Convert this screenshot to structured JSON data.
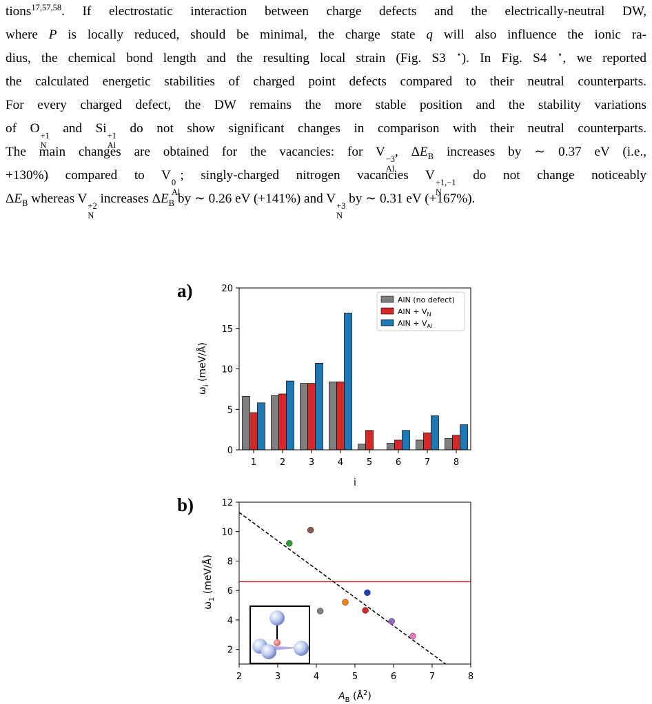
{
  "paper": {
    "line1": {
      "a": "tions",
      "sup": "17,57,58",
      "b": ". If electrostatic interaction between charge defects and the electrically-neutral DW,"
    },
    "line2": {
      "a": "where ",
      "P": "P",
      "b": " is locally reduced, should be minimal, the charge state ",
      "q": "q",
      "c": " will also influence the ionic ra-"
    },
    "line3": {
      "a": "dius, the chemical bond length and the resulting local strain (Fig. S3 ",
      "star": "⋆",
      "b": "). In Fig. S4 ",
      "star2": "⋆",
      "c": ", we reported"
    },
    "line4": "the calculated energetic stabilities of charged point defects compared to their neutral counterparts.",
    "line5": "For every charged defect, the DW remains the more stable position and the stability variations",
    "line6": {
      "a": "of O",
      "o_sup": "+1",
      "o_sub": "N",
      "b": " and Si",
      "si_sup": "+1",
      "si_sub": "Al",
      "c": " do not show significant changes in comparison with their neutral counterparts."
    },
    "line7": {
      "a": "The main changes are obtained for the vacancies: for V",
      "v_sup": "−3",
      "v_sub": "Al",
      "b": ", Δ",
      "E": "E",
      "E_sub": "B",
      "c": " increases by ∼ 0.37 eV (i.e.,"
    },
    "line8": {
      "a": "+130%) compared to V",
      "v_sup": "0",
      "v_sub": "Al",
      "b": "; singly-charged nitrogen vacancies V",
      "v2_sup": "+1,−1",
      "v2_sub": "N",
      "c": " do not change noticeably"
    },
    "line9": {
      "a": "Δ",
      "E": "E",
      "E_sub": "B",
      "b": " whereas V",
      "v_sup": "+2",
      "v_sub": "N",
      "c": " increases Δ",
      "E2": "E",
      "E2_sub": "B",
      "d": " by ∼ 0.26 eV (+141%) and V",
      "v2_sup": "+3",
      "v2_sub": "N",
      "e": " by ∼ 0.31 eV (+167%)."
    }
  },
  "figure": {
    "label_a": "a)",
    "label_b": "b)",
    "ylabel_a_main": "ω",
    "ylabel_a_sub": "i",
    "ylabel_a_unit": " (meV/Å)",
    "ylabel_b_main": "ω",
    "ylabel_b_sub": "1",
    "ylabel_b_unit": " (meV/Å)",
    "xlabel_b_main": "A",
    "xlabel_b_sub": "B",
    "xlabel_b_unit": " (Å",
    "xlabel_b_sup": "2",
    "xlabel_b_close": ")",
    "legend": [
      {
        "main": "AlN (no defect)",
        "sub": ""
      },
      {
        "main": "AlN + V",
        "sub": "N"
      },
      {
        "main": "AlN + V",
        "sub": "Al"
      }
    ]
  },
  "chart_data": [
    {
      "type": "bar",
      "xlabel": "i",
      "ylabel": "ωi (meV/Å)",
      "categories": [
        "1",
        "2",
        "3",
        "4",
        "5",
        "6",
        "7",
        "8"
      ],
      "ylim": [
        0,
        20
      ],
      "yticks": [
        0,
        5,
        10,
        15,
        20
      ],
      "legend_position": "top-right",
      "series": [
        {
          "name": "AlN (no defect)",
          "color": "#7f7f7f",
          "values": [
            6.6,
            6.7,
            8.2,
            8.4,
            0.7,
            0.8,
            1.2,
            1.4
          ]
        },
        {
          "name": "AlN + VN",
          "color": "#d62728",
          "values": [
            4.6,
            6.9,
            8.2,
            8.4,
            2.4,
            1.2,
            2.1,
            1.8
          ]
        },
        {
          "name": "AlN + VAl",
          "color": "#1f77b4",
          "values": [
            5.8,
            8.5,
            10.7,
            16.9,
            0.0,
            2.4,
            4.2,
            3.1
          ]
        }
      ]
    },
    {
      "type": "scatter",
      "xlabel": "AB (Å2)",
      "ylabel": "ω1 (meV/Å)",
      "xlim": [
        2,
        8
      ],
      "ylim": [
        1,
        12
      ],
      "xticks": [
        2,
        3,
        4,
        5,
        6,
        7,
        8
      ],
      "yticks": [
        2,
        4,
        6,
        8,
        10,
        12
      ],
      "points": [
        {
          "x": 3.3,
          "y": 9.2,
          "color": "#2ca02c"
        },
        {
          "x": 3.85,
          "y": 10.1,
          "color": "#8c564b"
        },
        {
          "x": 4.1,
          "y": 4.6,
          "color": "#7f7f7f"
        },
        {
          "x": 4.75,
          "y": 5.2,
          "color": "#ff7f0e"
        },
        {
          "x": 5.27,
          "y": 4.65,
          "color": "#d62728"
        },
        {
          "x": 5.32,
          "y": 5.85,
          "color": "#1f3fb4"
        },
        {
          "x": 5.95,
          "y": 3.9,
          "color": "#9467bd"
        },
        {
          "x": 6.5,
          "y": 2.9,
          "color": "#e377c2"
        }
      ],
      "fit_line": {
        "style": "dashed",
        "color": "#000000",
        "x": [
          2.0,
          7.35
        ],
        "y": [
          11.3,
          1.0
        ]
      },
      "reference_line": {
        "style": "solid",
        "color": "#d62728",
        "y": 6.6
      }
    }
  ]
}
